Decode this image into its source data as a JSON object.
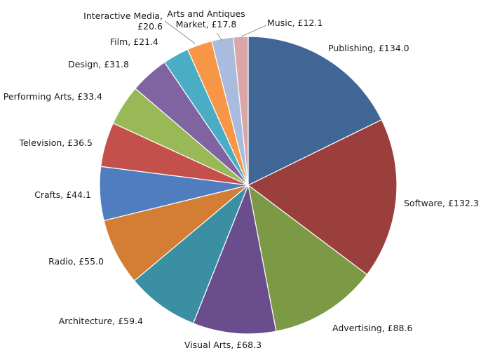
{
  "chart_data": {
    "type": "pie",
    "title": "",
    "start_angle_deg": 0,
    "direction": "clockwise",
    "legend": "none",
    "slices": [
      {
        "name": "Publishing",
        "value": 134.0,
        "label": "Publishing, £134.0",
        "color": "#3F6695"
      },
      {
        "name": "Software",
        "value": 132.3,
        "label": "Software, £132.3",
        "color": "#9B3F3D"
      },
      {
        "name": "Advertising",
        "value": 88.6,
        "label": "Advertising, £88.6",
        "color": "#7C9A45"
      },
      {
        "name": "Visual Arts",
        "value": 68.3,
        "label": "Visual Arts, £68.3",
        "color": "#6A4D8C"
      },
      {
        "name": "Architecture",
        "value": 59.4,
        "label": "Architecture, £59.4",
        "color": "#3B8FA3"
      },
      {
        "name": "Radio",
        "value": 55.0,
        "label": "Radio, £55.0",
        "color": "#D47E35"
      },
      {
        "name": "Crafts",
        "value": 44.1,
        "label": "Crafts, £44.1",
        "color": "#4F7DBF"
      },
      {
        "name": "Television",
        "value": 36.5,
        "label": "Television, £36.5",
        "color": "#C4504C"
      },
      {
        "name": "Performing Arts",
        "value": 33.4,
        "label": "Performing Arts, £33.4",
        "color": "#98B955"
      },
      {
        "name": "Design",
        "value": 31.8,
        "label": "Design, £31.8",
        "color": "#8064A2"
      },
      {
        "name": "Film",
        "value": 21.4,
        "label": "Film, £21.4",
        "color": "#4AACC5"
      },
      {
        "name": "Interactive Media",
        "value": 20.6,
        "label": "Interactive Media, £20.6",
        "color": "#F79646"
      },
      {
        "name": "Arts and Antiques Market",
        "value": 17.8,
        "label": "Arts and Antiques Market, £17.8",
        "color": "#A9BCDD"
      },
      {
        "name": "Music",
        "value": 12.1,
        "label": "Music, £12.1",
        "color": "#D9A7A6"
      }
    ]
  }
}
